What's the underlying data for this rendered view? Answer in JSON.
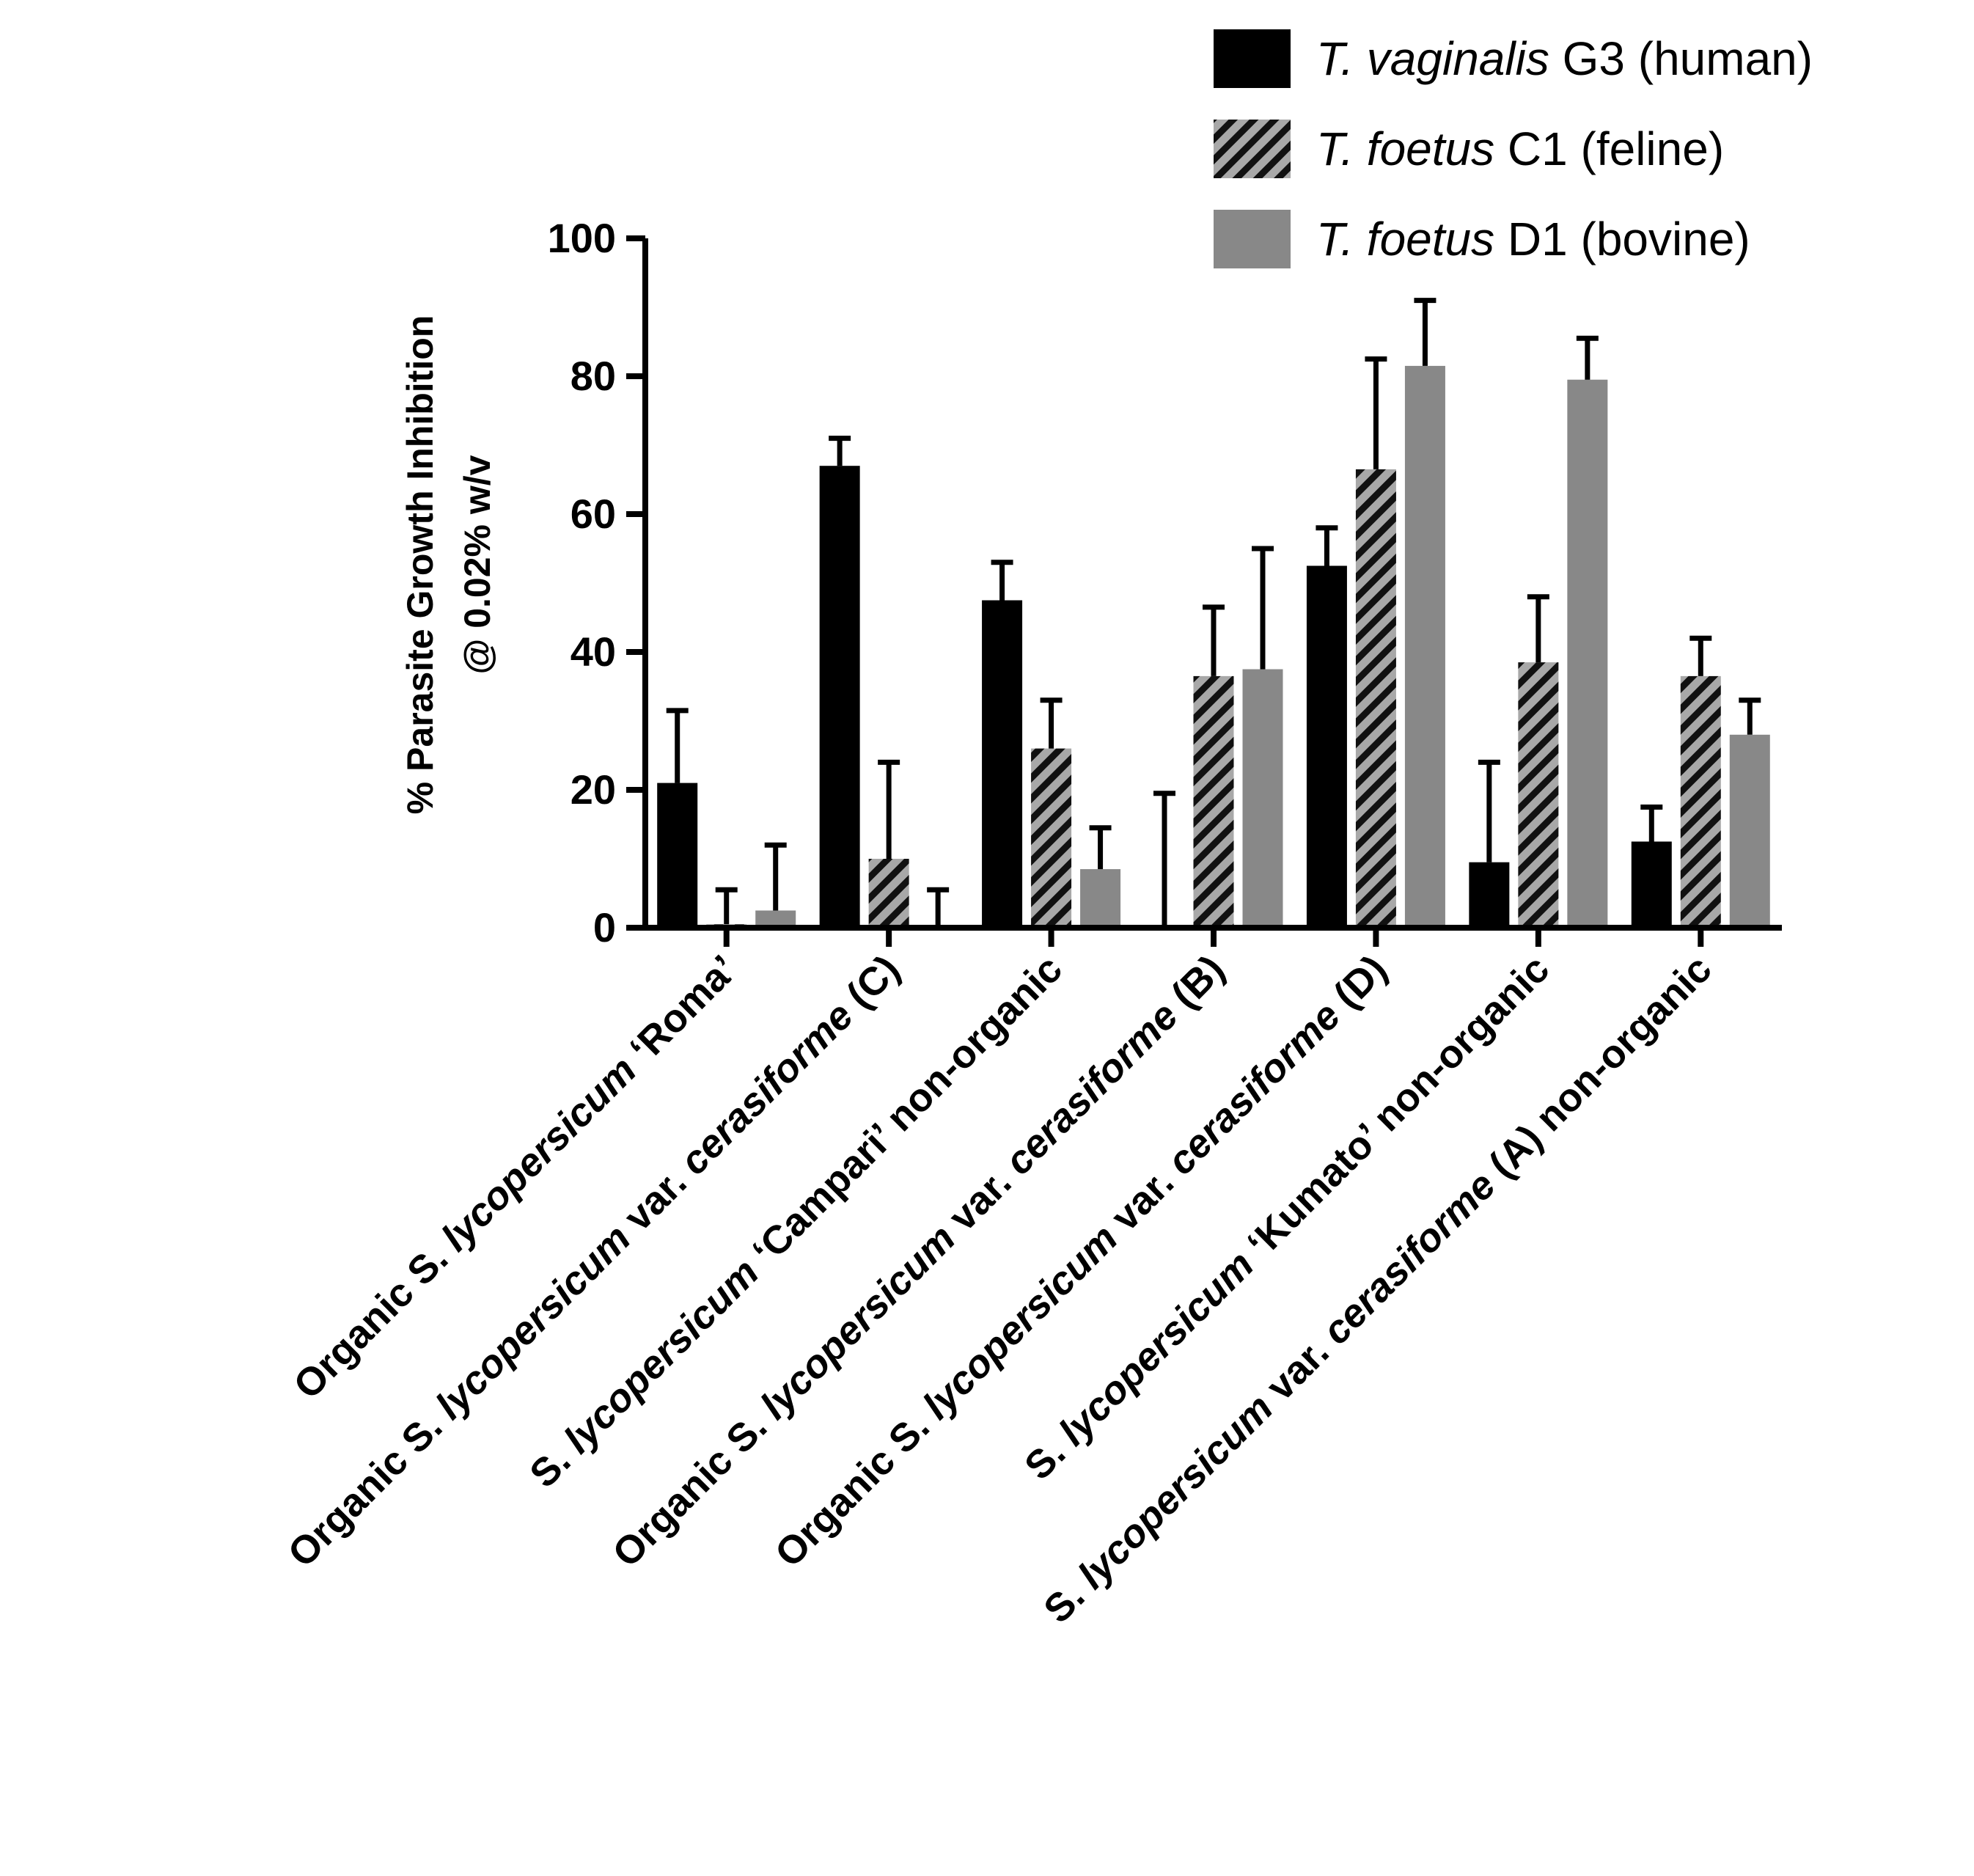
{
  "chart_data": {
    "type": "bar",
    "ylabel_line1": "% Parasite Growth Inhibition",
    "ylabel_line2": "@ 0.02% w/v",
    "ylim": [
      0,
      100
    ],
    "yticks": [
      "0",
      "20",
      "40",
      "60",
      "80",
      "100"
    ],
    "ytick_values": [
      0,
      20,
      40,
      60,
      80,
      100
    ],
    "categories": [
      {
        "parts": [
          {
            "t": "Organic S. ",
            "i": false
          },
          {
            "t": "lycopersicum",
            "i": true
          },
          {
            "t": " ‘Roma’",
            "i": false
          }
        ]
      },
      {
        "parts": [
          {
            "t": "Organic S. ",
            "i": false
          },
          {
            "t": "lycopersicum",
            "i": true
          },
          {
            "t": " var. ",
            "i": false
          },
          {
            "t": "cerasiforme",
            "i": true
          },
          {
            "t": " (C)",
            "i": false
          }
        ]
      },
      {
        "parts": [
          {
            "t": "S. ",
            "i": false
          },
          {
            "t": "lycopersicum",
            "i": true
          },
          {
            "t": " ‘Campari’ non-organic",
            "i": false
          }
        ]
      },
      {
        "parts": [
          {
            "t": "Organic S. ",
            "i": false
          },
          {
            "t": "lycopersicum",
            "i": true
          },
          {
            "t": " var. ",
            "i": false
          },
          {
            "t": "cerasiforme",
            "i": true
          },
          {
            "t": " (B)",
            "i": false
          }
        ]
      },
      {
        "parts": [
          {
            "t": "Organic S. ",
            "i": false
          },
          {
            "t": "lycopersicum",
            "i": true
          },
          {
            "t": " var. ",
            "i": false
          },
          {
            "t": "cerasiforme",
            "i": true
          },
          {
            "t": " (D)",
            "i": false
          }
        ]
      },
      {
        "parts": [
          {
            "t": "S. ",
            "i": false
          },
          {
            "t": "lycopersicum",
            "i": true
          },
          {
            "t": " ‘Kumato’ non-organic",
            "i": false
          }
        ]
      },
      {
        "parts": [
          {
            "t": "S. ",
            "i": false
          },
          {
            "t": "lycopersicum",
            "i": true
          },
          {
            "t": " var. ",
            "i": false
          },
          {
            "t": "cerasiforme",
            "i": true
          },
          {
            "t": " (A) non-organic",
            "i": false
          }
        ]
      }
    ],
    "series": [
      {
        "name_italic": "T. vaginalis",
        "name_rest": " G3 (human)",
        "style": "solid-black",
        "color": "#000000",
        "values": [
          21,
          67,
          47.5,
          0,
          52.5,
          9.5,
          12.5
        ],
        "errors": [
          10.5,
          4,
          5.5,
          19.5,
          5.5,
          14.5,
          5
        ]
      },
      {
        "name_italic": "T. foetus",
        "name_rest": " C1 (feline)",
        "style": "hatched",
        "color": "#9a9a9a",
        "values": [
          0.5,
          10,
          26,
          36.5,
          66.5,
          38.5,
          36.5
        ],
        "errors": [
          5,
          14,
          7,
          10,
          16,
          9.5,
          5.5
        ]
      },
      {
        "name_italic": "T. foetus",
        "name_rest": " D1 (bovine)",
        "style": "solid-gray",
        "color": "#888888",
        "values": [
          2.5,
          0,
          8.5,
          37.5,
          81.5,
          79.5,
          28
        ],
        "errors": [
          9.5,
          5.5,
          6,
          17.5,
          9.5,
          6,
          5
        ]
      }
    ]
  }
}
